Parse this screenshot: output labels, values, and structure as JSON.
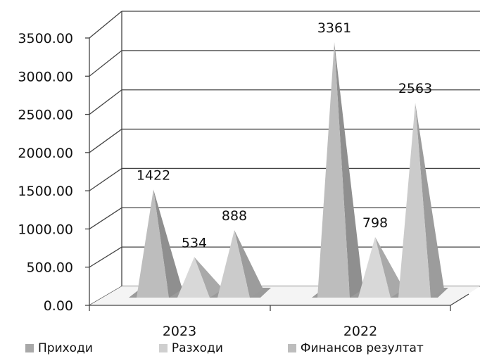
{
  "chart_data": {
    "type": "bar",
    "style": "3d-pyramid",
    "categories": [
      "2023",
      "2022"
    ],
    "series": [
      {
        "name": "Приходи",
        "values": [
          1422,
          3361
        ],
        "color": "#b8b8b8"
      },
      {
        "name": "Разходи",
        "values": [
          534,
          798
        ],
        "color": "#d4d4d4"
      },
      {
        "name": "Финансов резултат",
        "values": [
          888,
          2563
        ],
        "color": "#c6c6c6"
      }
    ],
    "data_labels": [
      [
        "1422",
        "3361"
      ],
      [
        "534",
        "798"
      ],
      [
        "888",
        "2563"
      ]
    ],
    "yticks": [
      "0.00",
      "500.00",
      "1000.00",
      "1500.00",
      "2000.00",
      "2500.00",
      "3000.00",
      "3500.00"
    ],
    "ylim": [
      0,
      3500
    ],
    "grid": true,
    "legend_position": "bottom"
  }
}
